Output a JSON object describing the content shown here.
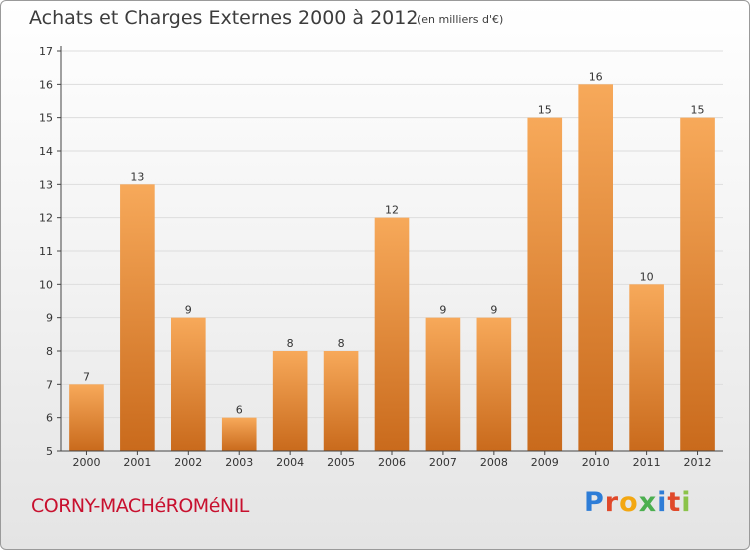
{
  "header": {
    "title": "Achats et Charges Externes 2000 à 2012",
    "unit": "(en milliers d'€)"
  },
  "footer": {
    "town": "CORNY-MACHéROMéNIL",
    "brand_letters": [
      "P",
      "r",
      "o",
      "x",
      "i",
      "t",
      "i"
    ],
    "brand_colors": [
      "#2e7dd7",
      "#e0492a",
      "#f3a712",
      "#4caf50",
      "#2e7dd7",
      "#e0492a",
      "#8bc34a"
    ]
  },
  "colors": {
    "bar_light": "#f7a95a",
    "bar_dark": "#c96a1c",
    "axis": "#444444",
    "grid": "#dddddd",
    "text": "#333333"
  },
  "chart_data": {
    "type": "bar",
    "title": "Achats et Charges Externes 2000 à 2012",
    "categories": [
      "2000",
      "2001",
      "2002",
      "2003",
      "2004",
      "2005",
      "2006",
      "2007",
      "2008",
      "2009",
      "2010",
      "2011",
      "2012"
    ],
    "values": [
      7,
      13,
      9,
      6,
      8,
      8,
      12,
      9,
      9,
      15,
      16,
      10,
      15
    ],
    "ylim": [
      5,
      17
    ],
    "yticks": [
      5,
      6,
      7,
      8,
      9,
      10,
      11,
      12,
      13,
      14,
      15,
      16,
      17
    ],
    "xlabel": "",
    "ylabel": "",
    "grid": true
  }
}
